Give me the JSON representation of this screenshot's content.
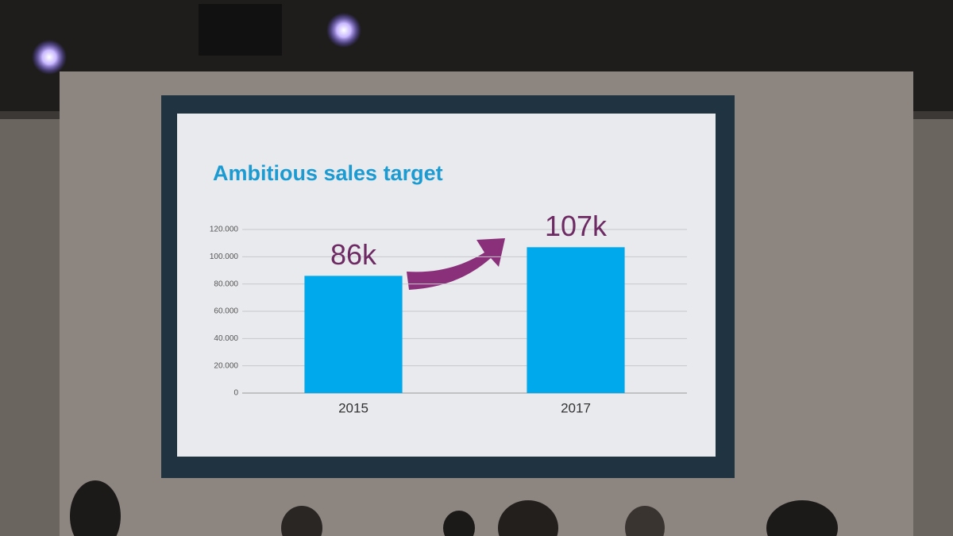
{
  "chart_data": {
    "type": "bar",
    "title": "Ambitious sales target",
    "categories": [
      "2015",
      "2017"
    ],
    "values": [
      86000,
      107000
    ],
    "value_labels": [
      "86k",
      "107k"
    ],
    "color": "#00a8ec",
    "ylim": [
      0,
      120000
    ],
    "yticks": [
      0,
      {
        "value": 20000,
        "label": "20.000"
      },
      {
        "value": 40000,
        "label": "40.000"
      },
      {
        "value": 60000,
        "label": "60.000"
      },
      {
        "value": 80000,
        "label": "80.000"
      },
      {
        "value": 100000,
        "label": "100.000"
      },
      {
        "value": 120000,
        "label": "120.000"
      }
    ],
    "grid": true
  }
}
